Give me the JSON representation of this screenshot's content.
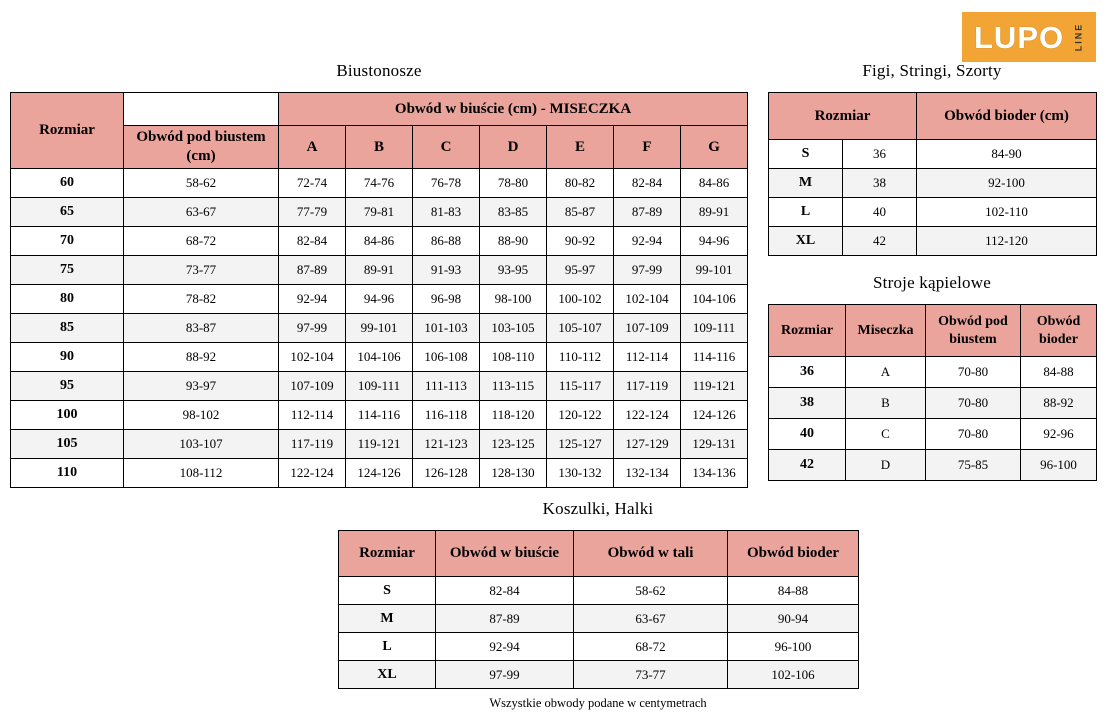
{
  "logo": {
    "text": "LUPO",
    "sub": "LINE"
  },
  "colors": {
    "header_bg": "#EAA49B",
    "border": "#000000",
    "alt_row": "#F3F3F3",
    "logo_bg": "#F2A434",
    "logo_text": "#FFFFFF",
    "logo_sub": "#333333"
  },
  "tables": {
    "bras": {
      "title": "Biustonosze",
      "header": {
        "rozmiar": "Rozmiar",
        "underbust": "Obwód pod biustem (cm)",
        "cup_group": "Obwód w biuście (cm) - MISECZKA",
        "cups": [
          "A",
          "B",
          "C",
          "D",
          "E",
          "F",
          "G"
        ]
      },
      "rows": [
        [
          "60",
          "58-62",
          "72-74",
          "74-76",
          "76-78",
          "78-80",
          "80-82",
          "82-84",
          "84-86"
        ],
        [
          "65",
          "63-67",
          "77-79",
          "79-81",
          "81-83",
          "83-85",
          "85-87",
          "87-89",
          "89-91"
        ],
        [
          "70",
          "68-72",
          "82-84",
          "84-86",
          "86-88",
          "88-90",
          "90-92",
          "92-94",
          "94-96"
        ],
        [
          "75",
          "73-77",
          "87-89",
          "89-91",
          "91-93",
          "93-95",
          "95-97",
          "97-99",
          "99-101"
        ],
        [
          "80",
          "78-82",
          "92-94",
          "94-96",
          "96-98",
          "98-100",
          "100-102",
          "102-104",
          "104-106"
        ],
        [
          "85",
          "83-87",
          "97-99",
          "99-101",
          "101-103",
          "103-105",
          "105-107",
          "107-109",
          "109-111"
        ],
        [
          "90",
          "88-92",
          "102-104",
          "104-106",
          "106-108",
          "108-110",
          "110-112",
          "112-114",
          "114-116"
        ],
        [
          "95",
          "93-97",
          "107-109",
          "109-111",
          "111-113",
          "113-115",
          "115-117",
          "117-119",
          "119-121"
        ],
        [
          "100",
          "98-102",
          "112-114",
          "114-116",
          "116-118",
          "118-120",
          "120-122",
          "122-124",
          "124-126"
        ],
        [
          "105",
          "103-107",
          "117-119",
          "119-121",
          "121-123",
          "123-125",
          "125-127",
          "127-129",
          "129-131"
        ],
        [
          "110",
          "108-112",
          "122-124",
          "124-126",
          "126-128",
          "128-130",
          "130-132",
          "132-134",
          "134-136"
        ]
      ]
    },
    "panties": {
      "title": "Figi, Stringi, Szorty",
      "header": {
        "rozmiar": "Rozmiar",
        "hips": "Obwód bioder (cm)"
      },
      "rows": [
        [
          "S",
          "36",
          "84-90"
        ],
        [
          "M",
          "38",
          "92-100"
        ],
        [
          "L",
          "40",
          "102-110"
        ],
        [
          "XL",
          "42",
          "112-120"
        ]
      ]
    },
    "swimwear": {
      "title": "Stroje kąpielowe",
      "header": {
        "rozmiar": "Rozmiar",
        "cup": "Miseczka",
        "underbust": "Obwód pod biustem",
        "hips": "Obwód bioder"
      },
      "rows": [
        [
          "36",
          "A",
          "70-80",
          "84-88"
        ],
        [
          "38",
          "B",
          "70-80",
          "88-92"
        ],
        [
          "40",
          "C",
          "70-80",
          "92-96"
        ],
        [
          "42",
          "D",
          "75-85",
          "96-100"
        ]
      ]
    },
    "shirts": {
      "title": "Koszulki, Halki",
      "header": {
        "rozmiar": "Rozmiar",
        "bust": "Obwód w biuście",
        "waist": "Obwód w tali",
        "hips": "Obwód bioder"
      },
      "rows": [
        [
          "S",
          "82-84",
          "58-62",
          "84-88"
        ],
        [
          "M",
          "87-89",
          "63-67",
          "90-94"
        ],
        [
          "L",
          "92-94",
          "68-72",
          "96-100"
        ],
        [
          "XL",
          "97-99",
          "73-77",
          "102-106"
        ]
      ]
    }
  },
  "footer": "Wszystkie obwody podane w centymetrach"
}
